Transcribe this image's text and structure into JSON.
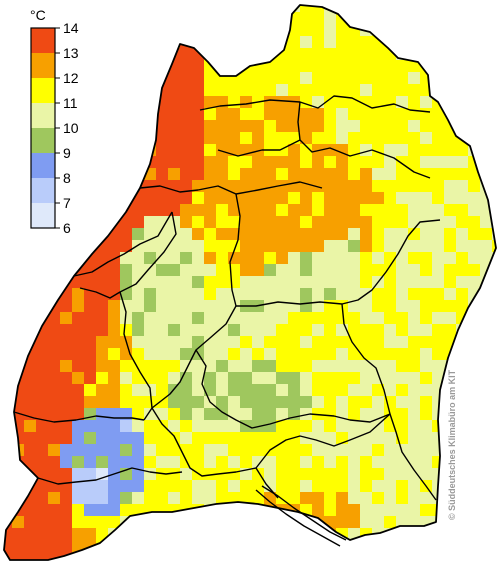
{
  "legend": {
    "unit": "°C",
    "ticks": [
      "14",
      "13",
      "12",
      "11",
      "10",
      "9",
      "8",
      "7",
      "6"
    ],
    "classes": [
      {
        "range": "13–14",
        "color": "#ef4a14"
      },
      {
        "range": "12–13",
        "color": "#f7a000"
      },
      {
        "range": "11–12",
        "color": "#ffff00"
      },
      {
        "range": "10–11",
        "color": "#eaf5a7"
      },
      {
        "range": "9–10",
        "color": "#9fc75e"
      },
      {
        "range": "8–9",
        "color": "#7f9cf2"
      },
      {
        "range": "7–8",
        "color": "#b9ccfa"
      },
      {
        "range": "6–7",
        "color": "#dfe9fa"
      }
    ]
  },
  "copyright": "© Süddeutsches Klimabüro am KIT"
}
